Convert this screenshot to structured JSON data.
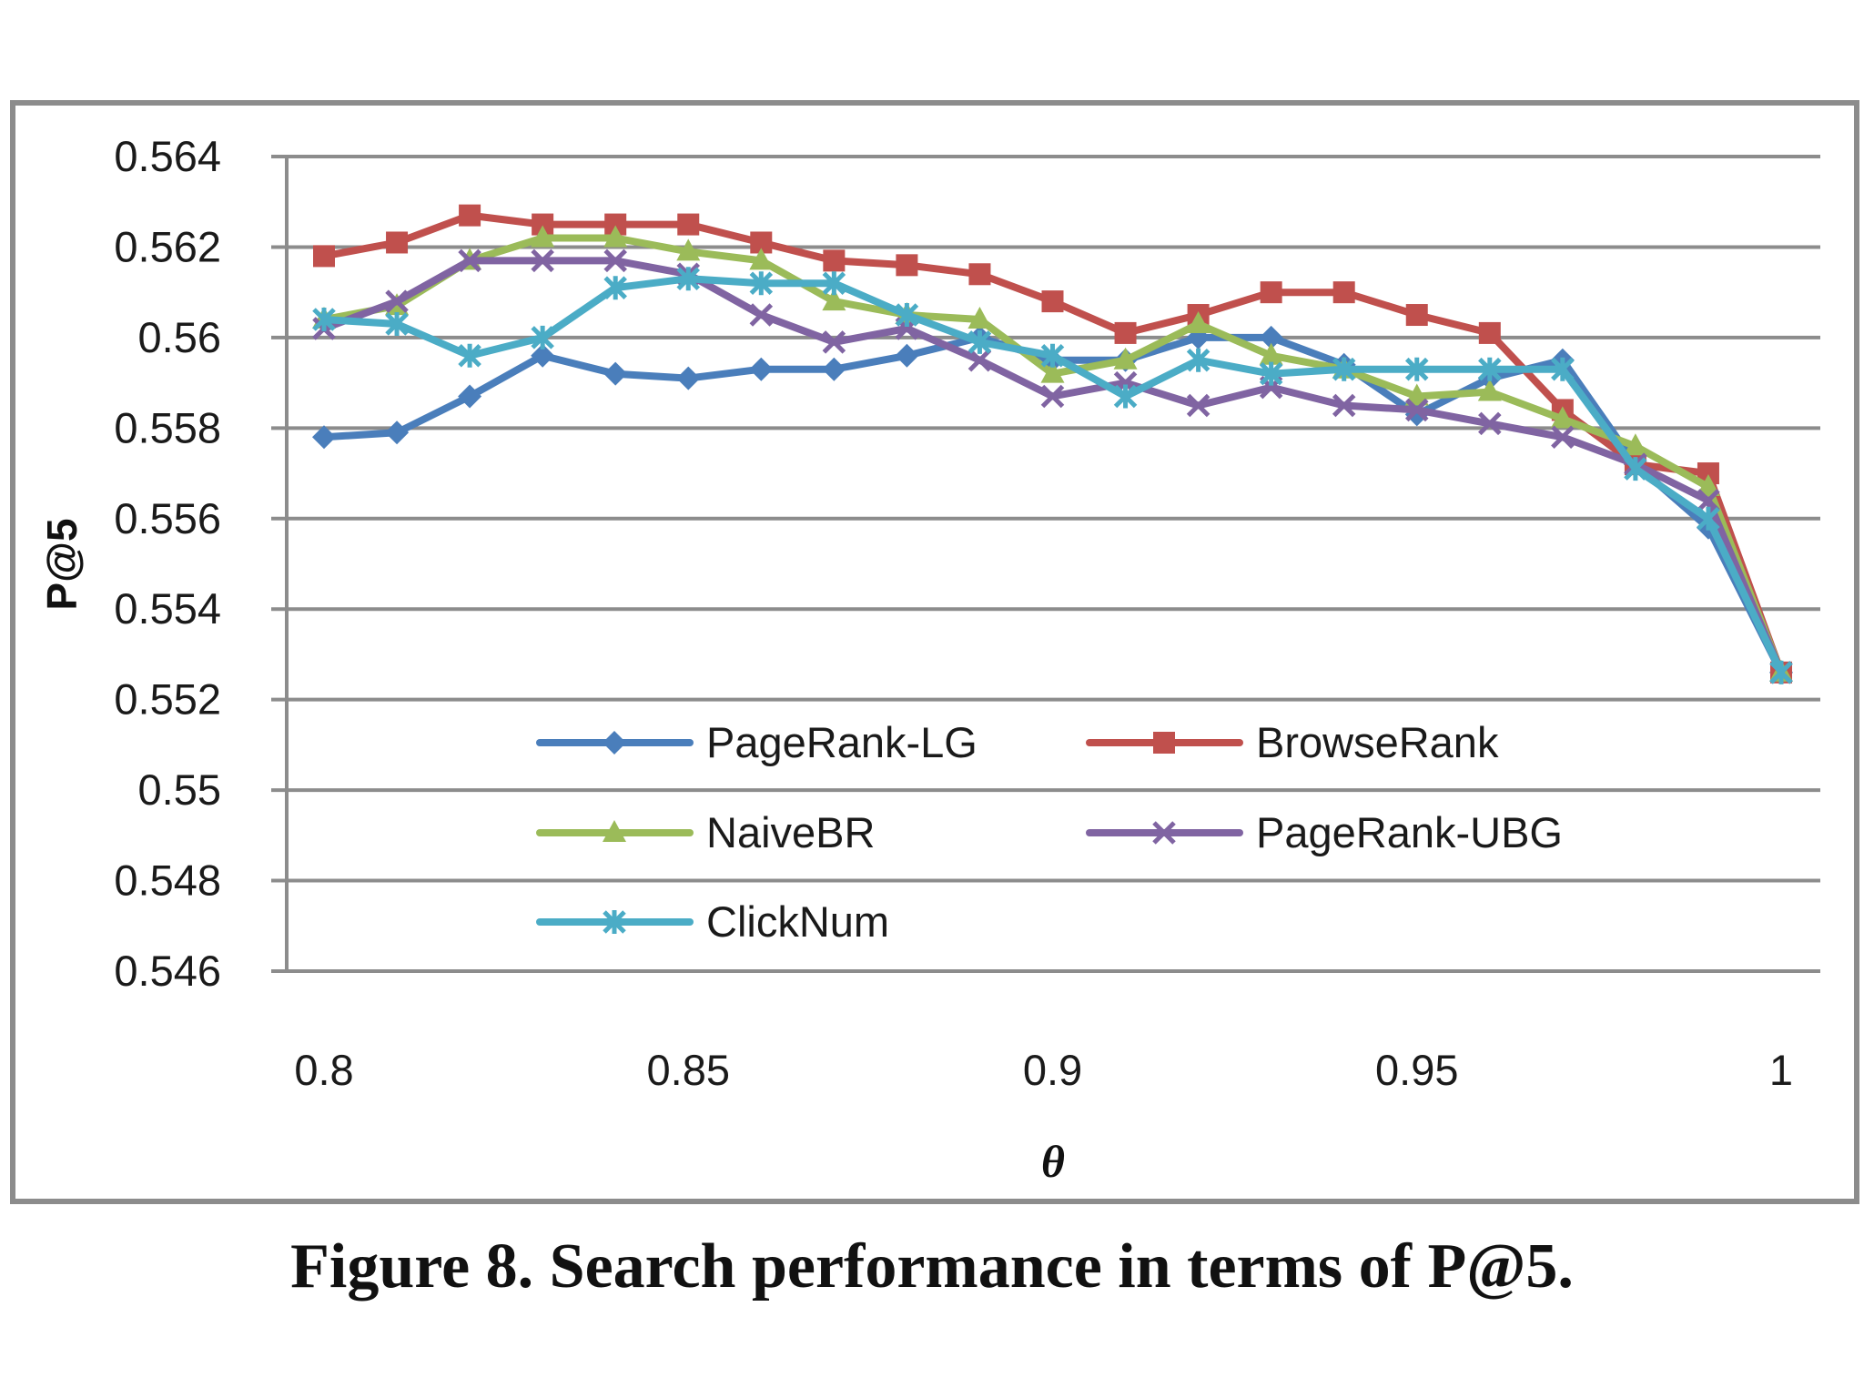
{
  "caption": "Figure 8. Search performance in terms of P@5.",
  "chart_data": {
    "type": "line",
    "title": "",
    "xlabel": "θ",
    "ylabel": "P@5",
    "xlim": [
      0.8,
      1.0
    ],
    "ylim": [
      0.546,
      0.564
    ],
    "grid": true,
    "legend_position": "lower-center-left",
    "x": [
      0.8,
      0.81,
      0.82,
      0.83,
      0.84,
      0.85,
      0.86,
      0.87,
      0.88,
      0.89,
      0.9,
      0.91,
      0.92,
      0.93,
      0.94,
      0.95,
      0.96,
      0.97,
      0.98,
      0.99,
      1.0
    ],
    "x_ticks": [
      0.8,
      0.85,
      0.9,
      0.95,
      1
    ],
    "x_tick_labels": [
      "0.8",
      "0.85",
      "0.9",
      "0.95",
      "1"
    ],
    "y_ticks": [
      0.564,
      0.562,
      0.56,
      0.558,
      0.556,
      0.554,
      0.552,
      0.55,
      0.548,
      0.546
    ],
    "y_tick_labels": [
      "0.564",
      "0.562",
      "0.56",
      "0.558",
      "0.556",
      "0.554",
      "0.552",
      "0.55",
      "0.548",
      "0.546"
    ],
    "series": [
      {
        "name": "PageRank-LG",
        "color": "#4a7ebb",
        "marker": "diamond",
        "values": [
          0.5578,
          0.5579,
          0.5587,
          0.5596,
          0.5592,
          0.5591,
          0.5593,
          0.5593,
          0.5596,
          0.56,
          0.5595,
          0.5595,
          0.56,
          0.56,
          0.5594,
          0.5583,
          0.5591,
          0.5595,
          0.5572,
          0.5558,
          0.5526
        ]
      },
      {
        "name": "BrowseRank",
        "color": "#c0504d",
        "marker": "square",
        "values": [
          0.5618,
          0.5621,
          0.5627,
          0.5625,
          0.5625,
          0.5625,
          0.5621,
          0.5617,
          0.5616,
          0.5614,
          0.5608,
          0.5601,
          0.5605,
          0.561,
          0.561,
          0.5605,
          0.5601,
          0.5584,
          0.5572,
          0.557,
          0.5526
        ]
      },
      {
        "name": "NaiveBR",
        "color": "#9bbb59",
        "marker": "triangle",
        "values": [
          0.5604,
          0.5607,
          0.5617,
          0.5622,
          0.5622,
          0.5619,
          0.5617,
          0.5608,
          0.5605,
          0.5604,
          0.5592,
          0.5595,
          0.5603,
          0.5596,
          0.5593,
          0.5587,
          0.5588,
          0.5582,
          0.5576,
          0.5567,
          0.5526
        ]
      },
      {
        "name": "PageRank-UBG",
        "color": "#8064a2",
        "marker": "x",
        "values": [
          0.5602,
          0.5608,
          0.5617,
          0.5617,
          0.5617,
          0.5614,
          0.5605,
          0.5599,
          0.5602,
          0.5595,
          0.5587,
          0.559,
          0.5585,
          0.5589,
          0.5585,
          0.5584,
          0.5581,
          0.5578,
          0.5572,
          0.5564,
          0.5526
        ]
      },
      {
        "name": "ClickNum",
        "color": "#4bacc6",
        "marker": "star",
        "values": [
          0.5604,
          0.5603,
          0.5596,
          0.56,
          0.5611,
          0.5613,
          0.5612,
          0.5612,
          0.5605,
          0.5599,
          0.5596,
          0.5587,
          0.5595,
          0.5592,
          0.5593,
          0.5593,
          0.5593,
          0.5593,
          0.5571,
          0.556,
          0.5526
        ]
      }
    ]
  }
}
